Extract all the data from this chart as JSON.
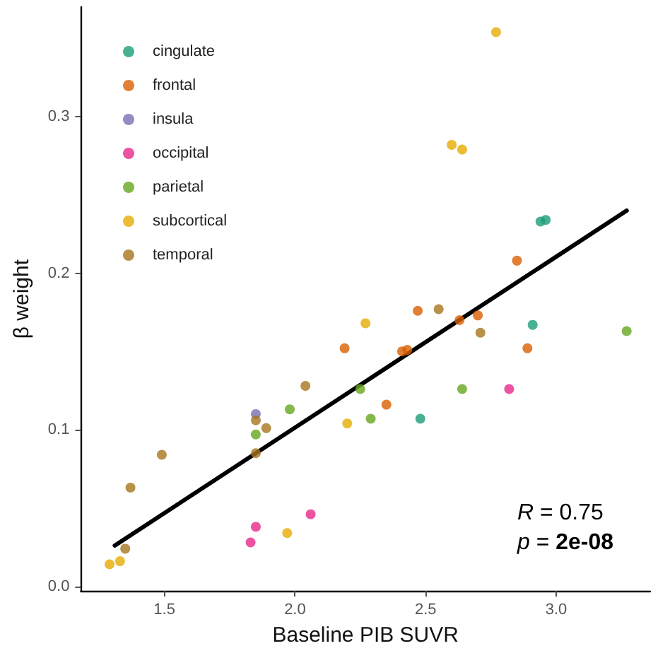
{
  "chart_data": {
    "type": "scatter",
    "xlabel": "Baseline PIB SUVR",
    "ylabel": "β weight",
    "xlim": [
      1.18,
      3.36
    ],
    "ylim": [
      -0.003,
      0.37
    ],
    "xticks": [
      {
        "value": 1.5,
        "label": "1.5"
      },
      {
        "value": 2,
        "label": "2.0"
      },
      {
        "value": 2.5,
        "label": "2.5"
      },
      {
        "value": 3,
        "label": "3.0"
      }
    ],
    "yticks": [
      {
        "value": 0,
        "label": "0.0"
      },
      {
        "value": 0.1,
        "label": "0.1"
      },
      {
        "value": 0.2,
        "label": "0.2"
      },
      {
        "value": 0.3,
        "label": "0.3"
      }
    ],
    "grid": false,
    "legend": "top left",
    "marker": "circle",
    "series": [
      {
        "name": "cingulate",
        "color": "#1b9e77",
        "x": [
          2.48,
          2.91,
          2.94,
          2.96
        ],
        "values": [
          0.107,
          0.167,
          0.233,
          0.234
        ]
      },
      {
        "name": "frontal",
        "color": "#d95f02",
        "x": [
          2.19,
          2.35,
          2.41,
          2.43,
          2.47,
          2.63,
          2.7,
          2.85,
          2.89
        ],
        "values": [
          0.152,
          0.116,
          0.15,
          0.151,
          0.176,
          0.17,
          0.173,
          0.208,
          0.152
        ]
      },
      {
        "name": "insula",
        "color": "#7570b3",
        "x": [
          1.85
        ],
        "values": [
          0.11
        ]
      },
      {
        "name": "occipital",
        "color": "#e7298a",
        "x": [
          1.83,
          1.85,
          2.06,
          2.82
        ],
        "values": [
          0.028,
          0.038,
          0.046,
          0.126
        ]
      },
      {
        "name": "parietal",
        "color": "#66a61e",
        "x": [
          1.85,
          1.98,
          2.25,
          2.29,
          2.64,
          3.27
        ],
        "values": [
          0.097,
          0.113,
          0.126,
          0.107,
          0.126,
          0.163
        ]
      },
      {
        "name": "subcortical",
        "color": "#e6ab02",
        "x": [
          1.29,
          1.33,
          1.97,
          2.2,
          2.27,
          2.6,
          2.64,
          2.77
        ],
        "values": [
          0.014,
          0.016,
          0.034,
          0.104,
          0.168,
          0.282,
          0.279,
          0.354
        ]
      },
      {
        "name": "temporal",
        "color": "#a6761d",
        "x": [
          1.35,
          1.37,
          1.49,
          1.85,
          1.85,
          1.89,
          2.04,
          2.55,
          2.71
        ],
        "values": [
          0.024,
          0.063,
          0.084,
          0.085,
          0.106,
          0.101,
          0.128,
          0.177,
          0.162
        ]
      },
      {
        "type": "line",
        "color": "#000000",
        "marker": "none",
        "x": [
          1.31,
          3.27
        ],
        "values": [
          0.026,
          0.24
        ]
      }
    ],
    "annotations": [
      "R = 0.75",
      "p = 2e-08"
    ]
  }
}
